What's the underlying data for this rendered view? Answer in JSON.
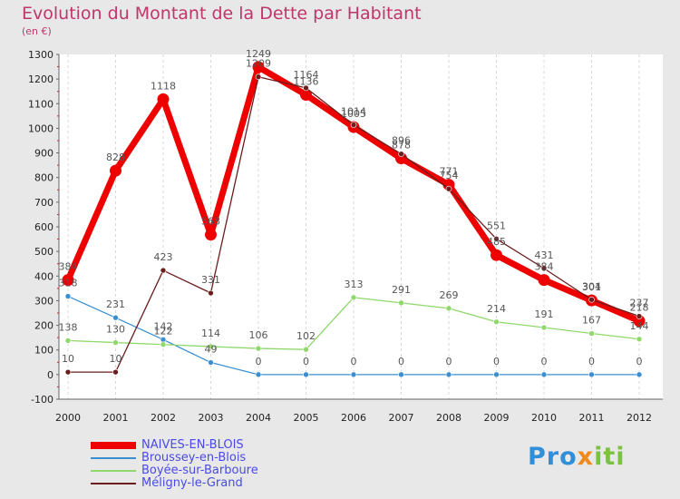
{
  "chart_data": {
    "type": "line",
    "title": "Evolution du Montant de la Dette par Habitant",
    "subtitle": "(en €)",
    "x": [
      "2000",
      "2001",
      "2002",
      "2003",
      "2004",
      "2005",
      "2006",
      "2007",
      "2008",
      "2009",
      "2010",
      "2011",
      "2012"
    ],
    "ylim": [
      -100,
      1300
    ],
    "yticks": [
      -100,
      0,
      100,
      200,
      300,
      400,
      500,
      600,
      700,
      800,
      900,
      1000,
      1100,
      1200,
      1300
    ],
    "grid": "vertical",
    "legend_position": "bottom-left",
    "series": [
      {
        "name": "NAIVES-EN-BLOIS",
        "color": "#ee0000",
        "values": [
          384,
          828,
          1118,
          568,
          1249,
          1136,
          1005,
          878,
          771,
          485,
          384,
          301,
          218
        ]
      },
      {
        "name": "Broussey-en-Blois",
        "color": "#3b8fd1",
        "values": [
          318,
          231,
          142,
          49,
          0,
          0,
          0,
          0,
          0,
          0,
          0,
          0,
          0
        ]
      },
      {
        "name": "Boyée-sur-Barboure",
        "color": "#8fd86c",
        "values": [
          138,
          130,
          122,
          114,
          106,
          102,
          313,
          291,
          269,
          214,
          191,
          167,
          144
        ]
      },
      {
        "name": "Méligny-le-Grand",
        "color": "#6b1e1e",
        "values": [
          10,
          10,
          423,
          331,
          1209,
          1164,
          1014,
          896,
          754,
          551,
          431,
          304,
          237
        ]
      }
    ]
  },
  "logo": {
    "part1": "Pro",
    "part2": "x",
    "part3": "iti"
  }
}
